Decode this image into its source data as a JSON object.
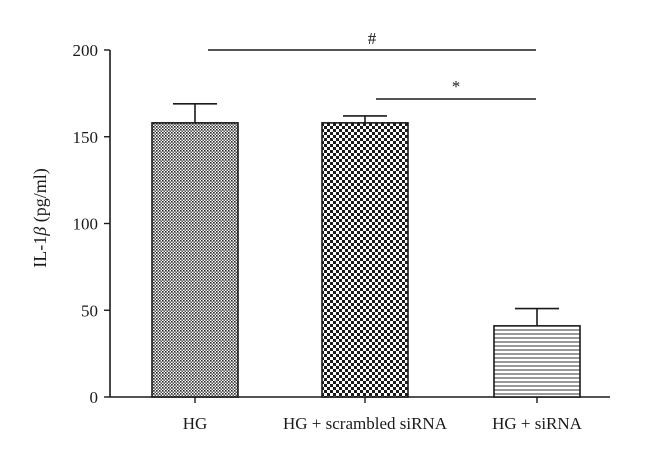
{
  "chart_data": {
    "type": "bar",
    "title": "",
    "xlabel": "",
    "ylabel_prefix": "IL-1",
    "ylabel_symbol": "β",
    "ylabel_suffix": " (pg/ml)",
    "ylim": [
      0,
      200
    ],
    "yticks": [
      "0",
      "50",
      "100",
      "150",
      "200"
    ],
    "ytick_values": [
      0,
      50,
      100,
      150,
      200
    ],
    "categories": [
      "HG",
      "HG + scrambled siRNA",
      "HG + siRNA"
    ],
    "values": [
      158,
      158,
      41
    ],
    "errors": [
      11,
      4,
      10
    ],
    "patterns": [
      "fine-crosshatch",
      "checkerboard",
      "horizontal-lines"
    ],
    "grid": false,
    "significance": [
      {
        "label": "#",
        "from": "HG",
        "to": "HG + siRNA"
      },
      {
        "label": "*",
        "from": "HG + scrambled siRNA",
        "to": "HG + siRNA"
      }
    ]
  },
  "colors": {
    "axis": "#1a1a1a",
    "bar_edge": "#1a1a1a",
    "background": "#ffffff"
  }
}
